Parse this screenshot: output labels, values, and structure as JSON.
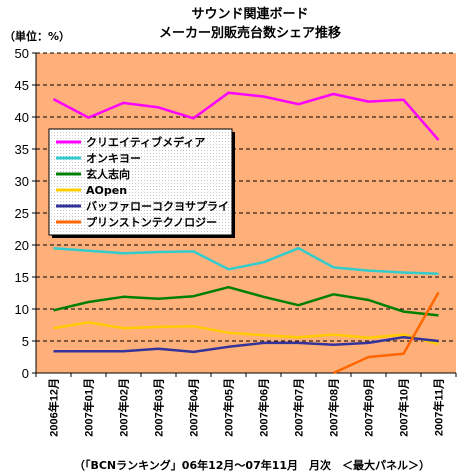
{
  "chart_data": {
    "type": "line",
    "title": [
      "サウンド関連ボード",
      "メーカー別販売台数シェア推移"
    ],
    "unit_label": "（単位：%）",
    "footer": "（「BCNランキング」06年12月～07年11月　月次　＜最大パネル＞）",
    "ylim": [
      0,
      50
    ],
    "yticks": [
      0,
      5,
      10,
      15,
      20,
      25,
      30,
      35,
      40,
      45,
      50
    ],
    "grid": true,
    "legend_position": "center-left",
    "categories": [
      "2006年12月",
      "2007年01月",
      "2007年02月",
      "2007年03月",
      "2007年04月",
      "2007年05月",
      "2007年06月",
      "2007年07月",
      "2007年08月",
      "2007年09月",
      "2007年10月",
      "2007年11月"
    ],
    "series": [
      {
        "name": "クリエイティブメディア",
        "color": "#ff00ff",
        "values": [
          42.8,
          39.9,
          42.2,
          41.5,
          39.8,
          43.8,
          43.2,
          42.0,
          43.6,
          42.4,
          42.7,
          36.4
        ]
      },
      {
        "name": "オンキヨー",
        "color": "#33cccc",
        "values": [
          19.5,
          19.1,
          18.7,
          18.9,
          19.0,
          16.2,
          17.3,
          19.5,
          16.5,
          16.0,
          15.7,
          15.5
        ]
      },
      {
        "name": "玄人志向",
        "color": "#008000",
        "values": [
          9.8,
          11.1,
          11.9,
          11.6,
          12.0,
          13.4,
          11.9,
          10.6,
          12.3,
          11.4,
          9.6,
          9.0
        ]
      },
      {
        "name": "AOpen",
        "color": "#ffcc00",
        "values": [
          7.0,
          7.9,
          7.0,
          7.2,
          7.3,
          6.3,
          5.9,
          5.6,
          6.0,
          5.5,
          6.0,
          4.5
        ]
      },
      {
        "name": "バッファローコクヨサプライ",
        "color": "#333399",
        "values": [
          3.4,
          3.4,
          3.4,
          3.8,
          3.3,
          4.1,
          4.7,
          4.7,
          4.4,
          4.7,
          5.6,
          5.0
        ]
      },
      {
        "name": "プリンストンテクノロジー",
        "color": "#ff6600",
        "values": [
          null,
          null,
          null,
          null,
          null,
          null,
          null,
          null,
          0.0,
          2.5,
          3.0,
          12.6
        ]
      }
    ]
  }
}
